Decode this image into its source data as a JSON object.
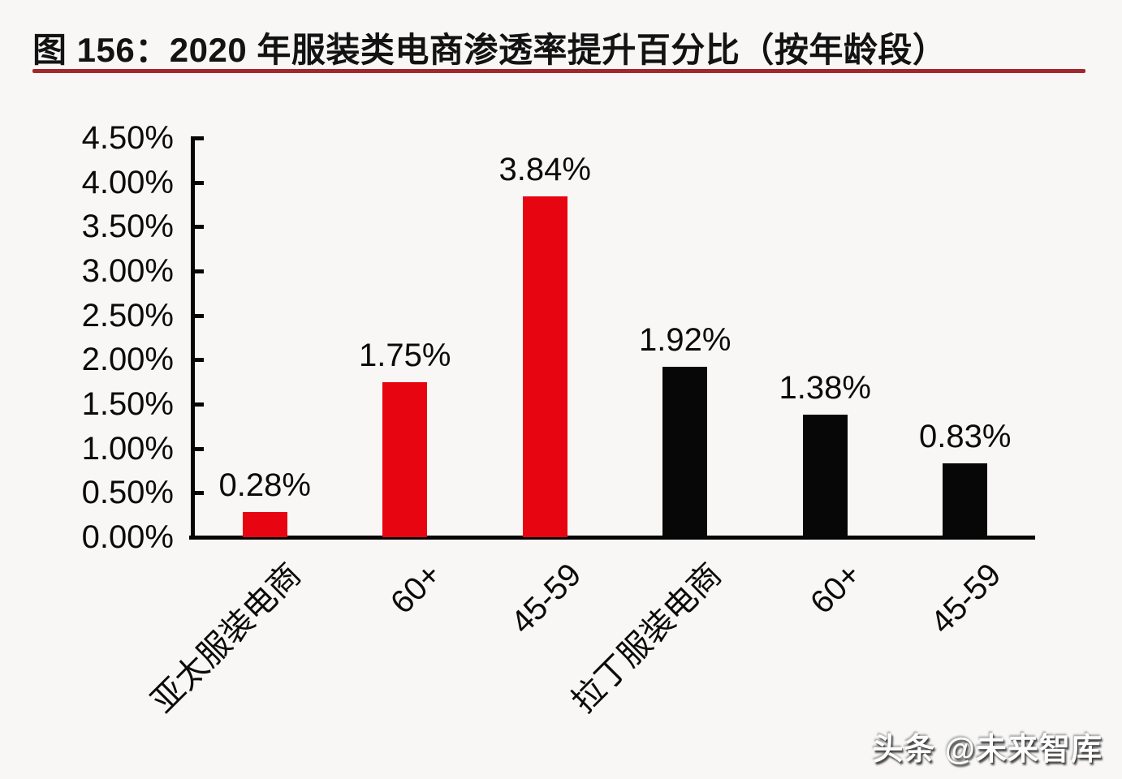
{
  "title": "图 156：2020 年服装类电商渗透率提升百分比（按年龄段）",
  "watermark": {
    "text": "头条 @未来智库"
  },
  "colors": {
    "bar_red": "#e60510",
    "bar_black": "#070707",
    "title_underline": "#a4282b",
    "axis": "#060606",
    "text": "#0b0b0b",
    "background": "#f8f7f6"
  },
  "chart_data": {
    "type": "bar",
    "title": "图 156：2020 年服装类电商渗透率提升百分比（按年龄段）",
    "categories": [
      "亚太服装电商",
      "60+",
      "45-59",
      "拉丁服装电商",
      "60+",
      "45-59"
    ],
    "values": [
      0.28,
      1.75,
      3.84,
      1.92,
      1.38,
      0.83
    ],
    "value_labels": [
      "0.28%",
      "1.75%",
      "3.84%",
      "1.92%",
      "1.38%",
      "0.83%"
    ],
    "bar_colors": [
      "#e60510",
      "#e60510",
      "#e60510",
      "#070707",
      "#070707",
      "#070707"
    ],
    "color_groups": [
      {
        "name": "亚太服装电商",
        "color": "#e60510"
      },
      {
        "name": "拉丁服装电商",
        "color": "#070707"
      }
    ],
    "xlabel": "",
    "ylabel": "",
    "ylim": [
      0,
      4.5
    ],
    "ytick_step": 0.5,
    "yticks": [
      "4.50%",
      "4.00%",
      "3.50%",
      "3.00%",
      "2.50%",
      "2.00%",
      "1.50%",
      "1.00%",
      "0.50%",
      "0.00%"
    ],
    "x_tick_rotation_deg": 45,
    "grid": false,
    "legend": "none"
  }
}
